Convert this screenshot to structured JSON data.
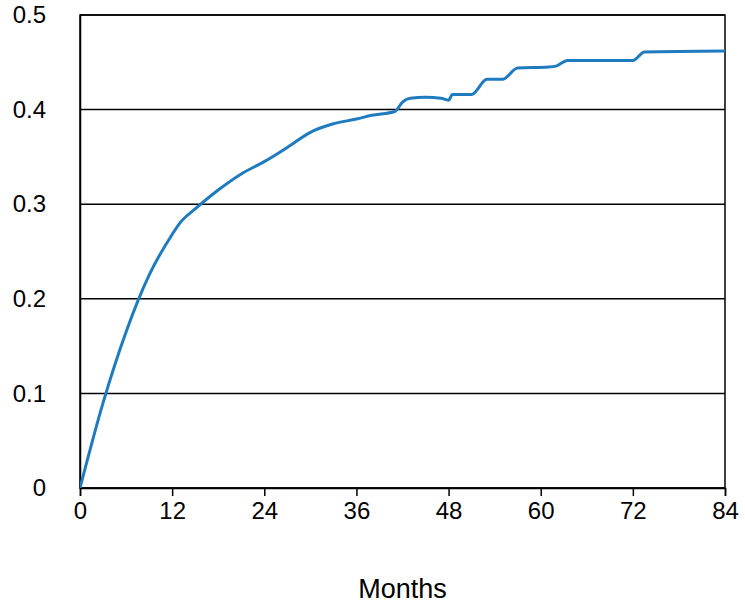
{
  "chart_data": {
    "type": "line",
    "x_label": "Months",
    "x": [
      0,
      3,
      6,
      9,
      12,
      13,
      15,
      18,
      21,
      24,
      27,
      30,
      33,
      36,
      38,
      41,
      42,
      43,
      45,
      47,
      48,
      48.5,
      51,
      53,
      55,
      57,
      61,
      62,
      63.5,
      72,
      73.5,
      84
    ],
    "values": [
      0,
      0.09,
      0.165,
      0.225,
      0.268,
      0.28,
      0.295,
      0.315,
      0.332,
      0.345,
      0.36,
      0.376,
      0.385,
      0.39,
      0.394,
      0.398,
      0.408,
      0.412,
      0.413,
      0.412,
      0.41,
      0.416,
      0.416,
      0.432,
      0.432,
      0.444,
      0.445,
      0.446,
      0.452,
      0.452,
      0.461,
      0.462
    ],
    "color": "#1f7bbf",
    "xlim": [
      0,
      84
    ],
    "xticks": [
      0,
      12,
      24,
      36,
      48,
      60,
      72,
      84
    ],
    "ylim": [
      0,
      0.5
    ],
    "yticks": [
      0,
      0.1,
      0.2,
      0.3,
      0.4,
      0.5
    ],
    "grid": true
  }
}
